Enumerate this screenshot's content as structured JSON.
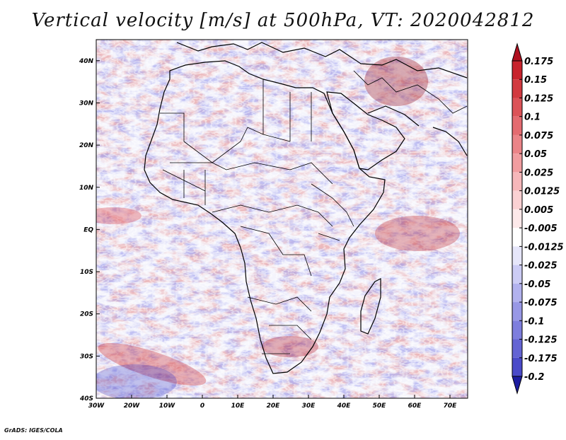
{
  "title": "Vertical velocity [m/s] at 500hPa, VT: 2020042812",
  "footer": "GrADS: IGES/COLA",
  "map": {
    "variable": "Vertical velocity",
    "units": "m/s",
    "level": "500hPa",
    "valid_time": "2020042812",
    "lon_range": [
      -30,
      75
    ],
    "lat_range": [
      -40,
      45
    ],
    "lon_ticks": [
      {
        "value": -30,
        "label": "30W"
      },
      {
        "value": -20,
        "label": "20W"
      },
      {
        "value": -10,
        "label": "10W"
      },
      {
        "value": 0,
        "label": "0"
      },
      {
        "value": 10,
        "label": "10E"
      },
      {
        "value": 20,
        "label": "20E"
      },
      {
        "value": 30,
        "label": "30E"
      },
      {
        "value": 40,
        "label": "40E"
      },
      {
        "value": 50,
        "label": "50E"
      },
      {
        "value": 60,
        "label": "60E"
      },
      {
        "value": 70,
        "label": "70E"
      }
    ],
    "lat_ticks": [
      {
        "value": 40,
        "label": "40N"
      },
      {
        "value": 30,
        "label": "30N"
      },
      {
        "value": 20,
        "label": "20N"
      },
      {
        "value": 10,
        "label": "10N"
      },
      {
        "value": 0,
        "label": "EQ"
      },
      {
        "value": -10,
        "label": "10S"
      },
      {
        "value": -20,
        "label": "20S"
      },
      {
        "value": -30,
        "label": "30S"
      },
      {
        "value": -40,
        "label": "40S"
      }
    ],
    "colors": {
      "background": "#f4f4fc",
      "coastline": "#000000",
      "positive_strong": "#b5172a",
      "negative_strong": "#3c37c8"
    }
  },
  "colorbar": {
    "levels": [
      {
        "label": "0.175",
        "color": "#c8232d"
      },
      {
        "label": "0.15",
        "color": "#d23a40"
      },
      {
        "label": "0.125",
        "color": "#dc5358"
      },
      {
        "label": "0.1",
        "color": "#e46b70"
      },
      {
        "label": "0.075",
        "color": "#eb8488"
      },
      {
        "label": "0.05",
        "color": "#f19da0"
      },
      {
        "label": "0.025",
        "color": "#f6b7ba"
      },
      {
        "label": "0.0125",
        "color": "#fad1d3"
      },
      {
        "label": "0.005",
        "color": "#fde9ea"
      },
      {
        "label": "-0.005",
        "color": "#ffffff"
      },
      {
        "label": "-0.0125",
        "color": "#e6e6fa"
      },
      {
        "label": "-0.025",
        "color": "#ccccf5"
      },
      {
        "label": "-0.05",
        "color": "#b2b2ee"
      },
      {
        "label": "-0.075",
        "color": "#9898e6"
      },
      {
        "label": "-0.1",
        "color": "#7e7edd"
      },
      {
        "label": "-0.125",
        "color": "#6464d4"
      },
      {
        "label": "-0.175",
        "color": "#4a4ac9"
      },
      {
        "label": "-0.2",
        "color": "#3030b4"
      }
    ],
    "top_arrow_color": "#b01020",
    "bottom_arrow_color": "#1c1ca0"
  }
}
